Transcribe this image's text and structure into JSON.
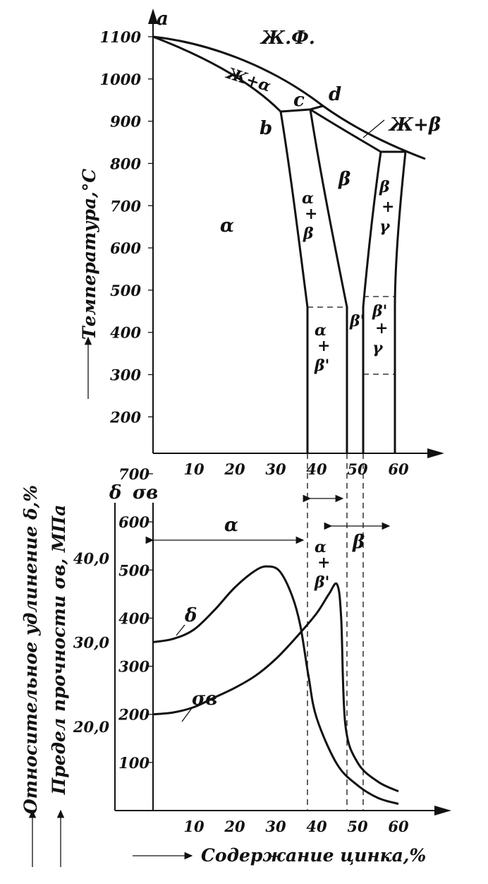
{
  "chart_data": [
    {
      "type": "phase-diagram",
      "ylabel": "Температура,°С",
      "y_ticks": [
        "1100",
        "1000",
        "900",
        "800",
        "700",
        "600",
        "500",
        "400",
        "300",
        "200"
      ],
      "x_ticks": [
        "10",
        "20",
        "30",
        "40",
        "50",
        "60"
      ],
      "ylim": [
        100,
        1100
      ],
      "xlim": [
        0,
        65
      ],
      "points": [
        {
          "label": "a",
          "x": 0,
          "y": 1100
        },
        {
          "label": "b",
          "x": 31,
          "y": 918
        },
        {
          "label": "c",
          "x": 37,
          "y": 918
        },
        {
          "label": "d",
          "x": 41,
          "y": 925
        }
      ],
      "phase_labels": {
        "liquid": "Ж.Ф.",
        "liquid_alpha": "Ж+α",
        "liquid_beta": "Ж+β",
        "alpha": "α",
        "alpha_beta": [
          "α",
          "+",
          "β"
        ],
        "beta": "β",
        "beta_gamma": [
          "β",
          "+",
          "γ"
        ],
        "alpha_beta_prime": [
          "α",
          "+",
          "β'"
        ],
        "beta_prime": "β'",
        "beta_prime_gamma": [
          "β'",
          "+",
          "γ"
        ]
      },
      "boundaries": {
        "liquidus": [
          [
            0,
            1100
          ],
          [
            17,
            1050
          ],
          [
            32,
            980
          ],
          [
            41,
            925
          ],
          [
            55,
            850
          ],
          [
            62,
            820
          ]
        ],
        "solidus_alpha": [
          [
            0,
            1100
          ],
          [
            15,
            1020
          ],
          [
            26,
            955
          ],
          [
            31,
            918
          ]
        ],
        "solidus_beta": [
          [
            37,
            918
          ],
          [
            55,
            820
          ],
          [
            60,
            820
          ]
        ],
        "alpha_boundary": [
          [
            31,
            918
          ],
          [
            33,
            760
          ],
          [
            35,
            600
          ],
          [
            37,
            455
          ],
          [
            37,
            100
          ]
        ],
        "beta_left_boundary": [
          [
            37,
            918
          ],
          [
            40,
            750
          ],
          [
            43,
            600
          ],
          [
            46,
            455
          ],
          [
            46,
            100
          ]
        ],
        "beta_right_boundary": [
          [
            55,
            820
          ],
          [
            53,
            700
          ],
          [
            51,
            550
          ],
          [
            50,
            455
          ],
          [
            50,
            100
          ]
        ],
        "gamma_boundary": [
          [
            60,
            820
          ],
          [
            58,
            700
          ],
          [
            58,
            455
          ],
          [
            58,
            100
          ]
        ],
        "ordering_transition_C": 455
      }
    },
    {
      "type": "line",
      "ylabel_delta": "Относительное удлинение δ,%",
      "ylabel_sigma": "Предел прочности σв, МПа",
      "ylabel_sigma_units": "МПа",
      "xlabel": "Содержание цинка,%",
      "delta_symbol": "δ",
      "sigma_symbol": "σв",
      "sigma_ticks": [
        "700",
        "600",
        "500",
        "400",
        "300",
        "200",
        "100"
      ],
      "delta_ticks": [
        "40,0",
        "30,0",
        "20,0"
      ],
      "x_ticks": [
        "10",
        "20",
        "30",
        "40",
        "50",
        "60"
      ],
      "ylim_sigma": [
        0,
        700
      ],
      "ylim_delta": [
        10,
        45
      ],
      "xlim": [
        0,
        65
      ],
      "region_labels": {
        "alpha": "α",
        "alpha_beta_prime": [
          "α",
          "+",
          "β'"
        ],
        "beta": "β"
      },
      "series": [
        {
          "name": "δ",
          "x": [
            0,
            5,
            10,
            15,
            20,
            25,
            28,
            31,
            34,
            36,
            38,
            40,
            45,
            50,
            55,
            60
          ],
          "y": [
            30.0,
            30.4,
            31.5,
            33.8,
            36.5,
            38.5,
            39.0,
            38.4,
            35.5,
            32.0,
            26.0,
            21.0,
            15.5,
            13.0,
            11.5,
            10.8
          ]
        },
        {
          "name": "σв",
          "x": [
            0,
            5,
            10,
            15,
            20,
            25,
            30,
            35,
            40,
            43,
            45,
            46,
            47,
            50,
            55,
            60
          ],
          "y": [
            200,
            204,
            215,
            235,
            255,
            280,
            315,
            360,
            410,
            450,
            470,
            400,
            180,
            100,
            60,
            40
          ]
        }
      ]
    }
  ]
}
